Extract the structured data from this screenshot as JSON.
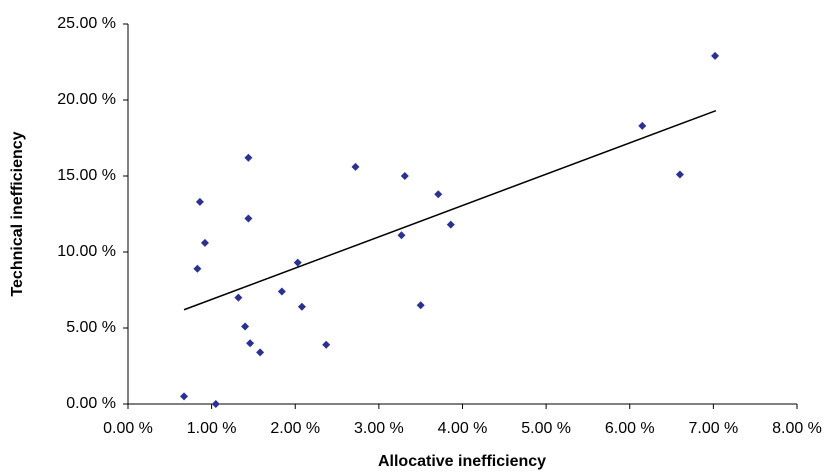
{
  "chart_data": {
    "type": "scatter",
    "x_label": "Allocative inefficiency",
    "y_label": "Technical inefficiency",
    "color": "#2b3190",
    "x": [
      0.67,
      1.05,
      0.83,
      0.86,
      0.92,
      1.32,
      1.4,
      1.44,
      1.44,
      1.46,
      1.58,
      1.84,
      2.03,
      2.08,
      2.37,
      2.72,
      3.27,
      3.31,
      3.5,
      3.71,
      3.86,
      6.15,
      6.6,
      7.02
    ],
    "values": [
      0.5,
      0.0,
      8.9,
      13.3,
      10.6,
      7.0,
      5.1,
      16.2,
      12.2,
      4.0,
      3.4,
      7.4,
      9.3,
      6.4,
      3.9,
      15.6,
      11.1,
      15.0,
      6.5,
      13.8,
      11.8,
      18.3,
      15.1,
      22.9
    ],
    "trendline": {
      "x": [
        0.67,
        7.03
      ],
      "y": [
        6.2,
        19.3
      ],
      "color": "#000000"
    },
    "xlim": [
      0,
      8
    ],
    "ylim": [
      0,
      25
    ],
    "xticks": [
      {
        "value": 0,
        "label": "0.00 %"
      },
      {
        "value": 1,
        "label": "1.00 %"
      },
      {
        "value": 2,
        "label": "2.00 %"
      },
      {
        "value": 3,
        "label": "3.00 %"
      },
      {
        "value": 4,
        "label": "4.00 %"
      },
      {
        "value": 5,
        "label": "5.00 %"
      },
      {
        "value": 6,
        "label": "6.00 %"
      },
      {
        "value": 7,
        "label": "7.00 %"
      },
      {
        "value": 8,
        "label": "8.00 %"
      }
    ],
    "yticks": [
      {
        "value": 0,
        "label": "0.00 %"
      },
      {
        "value": 5,
        "label": "5.00 %"
      },
      {
        "value": 10,
        "label": "10.00 %"
      },
      {
        "value": 15,
        "label": "15.00 %"
      },
      {
        "value": 20,
        "label": "20.00 %"
      },
      {
        "value": 25,
        "label": "25.00 %"
      }
    ]
  }
}
